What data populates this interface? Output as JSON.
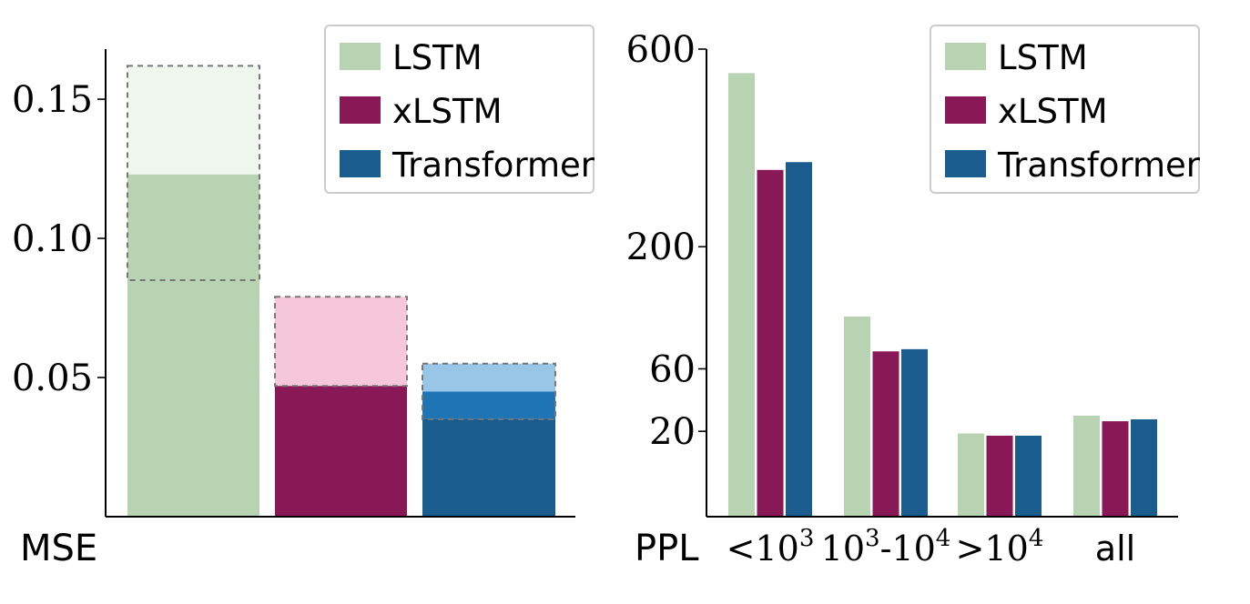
{
  "chart_data": [
    {
      "type": "bar",
      "panel": "mse",
      "corner_label": "MSE",
      "categories": [
        "LSTM",
        "xLSTM",
        "Transformer"
      ],
      "values": [
        0.123,
        0.047,
        0.045
      ],
      "range_low": [
        0.085,
        0.047,
        0.035
      ],
      "range_high": [
        0.162,
        0.079,
        0.055
      ],
      "ylim": [
        0,
        0.168
      ],
      "yticks": [
        0.05,
        0.1,
        0.15
      ],
      "ytick_labels": [
        "0.05",
        "0.10",
        "0.15"
      ],
      "legend": {
        "placement": "top-right",
        "entries": [
          "LSTM",
          "xLSTM",
          "Transformer"
        ]
      },
      "grid": false
    },
    {
      "type": "bar",
      "panel": "ppl",
      "corner_label": "PPL",
      "categories": [
        "<10^3",
        "10^3-10^4",
        ">10^4",
        "all"
      ],
      "y_scale": "sqrt",
      "series": [
        {
          "name": "LSTM",
          "values": [
            540,
            110,
            19,
            28
          ]
        },
        {
          "name": "xLSTM",
          "values": [
            330,
            75,
            18,
            25
          ]
        },
        {
          "name": "Transformer",
          "values": [
            345,
            77,
            18,
            26
          ]
        }
      ],
      "ylim": [
        0,
        600
      ],
      "yticks": [
        20,
        60,
        200,
        600
      ],
      "ytick_labels": [
        "20",
        "60",
        "200",
        "600"
      ],
      "legend": {
        "placement": "top-right",
        "entries": [
          "LSTM",
          "xLSTM",
          "Transformer"
        ]
      },
      "grid": false
    }
  ],
  "colors": {
    "lstm": "#b7d3b2",
    "xlstm": "#891856",
    "transformer": "#1a5c8e",
    "lstm_light": "#eef6ee",
    "xlstm_light": "#f6c7d8",
    "transformer_light": "#98c6e6",
    "xlstm_mid": "#be5b88",
    "transformer_mid": "#1f74b4"
  }
}
